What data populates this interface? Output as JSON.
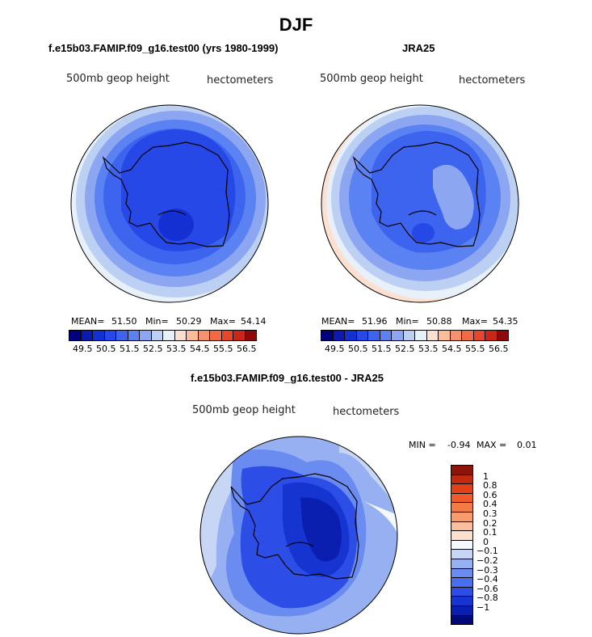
{
  "title": "DJF",
  "left_panel": {
    "subtitle": "f.e15b03.FAMIP.f09_g16.test00 (yrs 1980-1999)",
    "field_label": "500mb geop height",
    "units_label": "hectometers",
    "mean_label": "MEAN=",
    "mean": "51.50",
    "min_label": "Min=",
    "min": "50.29",
    "max_label": "Max=",
    "max": "54.14"
  },
  "right_panel": {
    "subtitle": "JRA25",
    "field_label": "500mb geop height",
    "units_label": "hectometers",
    "mean_label": "MEAN=",
    "mean": "51.96",
    "min_label": "Min=",
    "min": "50.88",
    "max_label": "Max=",
    "max": "54.35"
  },
  "diff_panel": {
    "subtitle": "f.e15b03.FAMIP.f09_g16.test00 - JRA25",
    "field_label": "500mb geop height",
    "units_label": "hectometers",
    "min_label": "MIN =",
    "min": "-0.94",
    "max_label": "MAX =",
    "max": "0.01"
  },
  "abs_colorbar": {
    "colors": [
      "#00007a",
      "#0a1cb0",
      "#1430d2",
      "#2648e6",
      "#3c64ee",
      "#5a82f2",
      "#8ca6f2",
      "#bcd0f4",
      "#e8f0fa",
      "#fde0d0",
      "#fbbc9c",
      "#f7906c",
      "#f26a44",
      "#e8462a",
      "#c8281a",
      "#8c0a0a"
    ],
    "tick_labels": [
      "49.5",
      "50.5",
      "51.5",
      "52.5",
      "53.5",
      "54.5",
      "55.5",
      "56.5"
    ]
  },
  "diff_colorbar": {
    "colors": [
      "#8c1408",
      "#c22a10",
      "#e2401a",
      "#f05a2a",
      "#f47a46",
      "#f89c70",
      "#fbbea0",
      "#fde0d0",
      "#f4f8ff",
      "#c6d6f4",
      "#96b0f2",
      "#6a8cf0",
      "#4a6ef0",
      "#2c4ee6",
      "#1634d0",
      "#0a1eb0",
      "#00087a"
    ],
    "tick_labels": [
      "1",
      "0.8",
      "0.6",
      "0.4",
      "0.3",
      "0.2",
      "0.1",
      "0",
      "−0.1",
      "−0.2",
      "−0.3",
      "−0.4",
      "−0.6",
      "−0.8",
      "−1"
    ]
  }
}
